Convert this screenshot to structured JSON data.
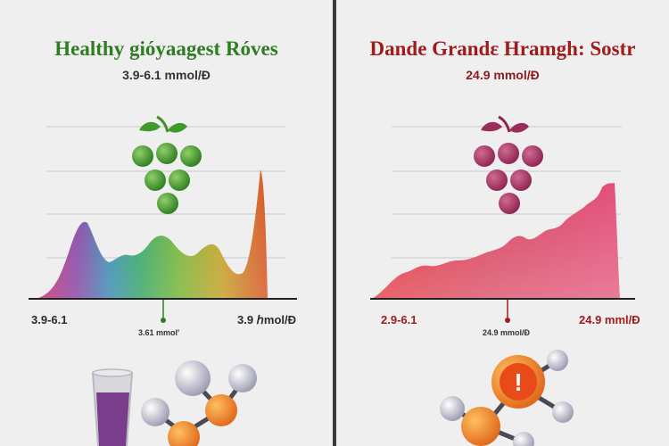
{
  "colors": {
    "healthy_title": "#2f7d22",
    "danger_title": "#a01c1c",
    "danger_labels": "#a01c1c",
    "divider": "#3a3a3a"
  },
  "left_panel": {
    "title": "Healthy gióyaagest Róves",
    "subtitle": "3.9-6.1 mmol/Ɖ",
    "axis_left": "3.9-6.1",
    "axis_right": "3.9 ℎmol/Ɖ",
    "marker_label": "3.61 mmol'",
    "icons": [
      "grape-cluster-icon",
      "glass-icon",
      "molecule-icon"
    ]
  },
  "right_panel": {
    "title": "Dande Grandε Hramgh: Sostr",
    "subtitle": "24.9 mmol/Ɖ",
    "axis_left": "2.9-6.1",
    "axis_right": "24.9 mml/Ɖ",
    "marker_label": "24.9 mmol/Ɖ",
    "warning_symbol": "!",
    "icons": [
      "grape-cluster-icon",
      "warning-molecule-icon"
    ]
  }
}
